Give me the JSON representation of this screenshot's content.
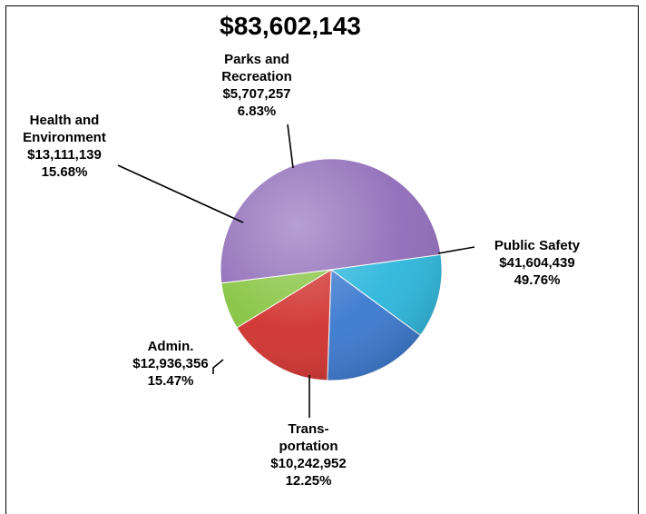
{
  "chart_data": {
    "type": "pie",
    "title": "$83,602,143",
    "slices": [
      {
        "key": "public-safety",
        "label_lines": [
          "Public Safety"
        ],
        "amount": "$41,604,439",
        "percent": "49.76%",
        "value": 41604439,
        "color": "#8E6BB8"
      },
      {
        "key": "transportation",
        "label_lines": [
          "Trans-",
          "portation"
        ],
        "amount": "$10,242,952",
        "percent": "12.25%",
        "value": 10242952,
        "color": "#2BB6DB"
      },
      {
        "key": "admin",
        "label_lines": [
          "Admin."
        ],
        "amount": "$12,936,356",
        "percent": "15.47%",
        "value": 12936356,
        "color": "#3A78CF"
      },
      {
        "key": "health-and-environment",
        "label_lines": [
          "Health and",
          "Environment"
        ],
        "amount": "$13,111,139",
        "percent": "15.68%",
        "value": 13111139,
        "color": "#D0312D"
      },
      {
        "key": "parks-and-recreation",
        "label_lines": [
          "Parks and",
          "Recreation"
        ],
        "amount": "$5,707,257",
        "percent": "6.83%",
        "value": 5707257,
        "color": "#85C440"
      }
    ]
  }
}
